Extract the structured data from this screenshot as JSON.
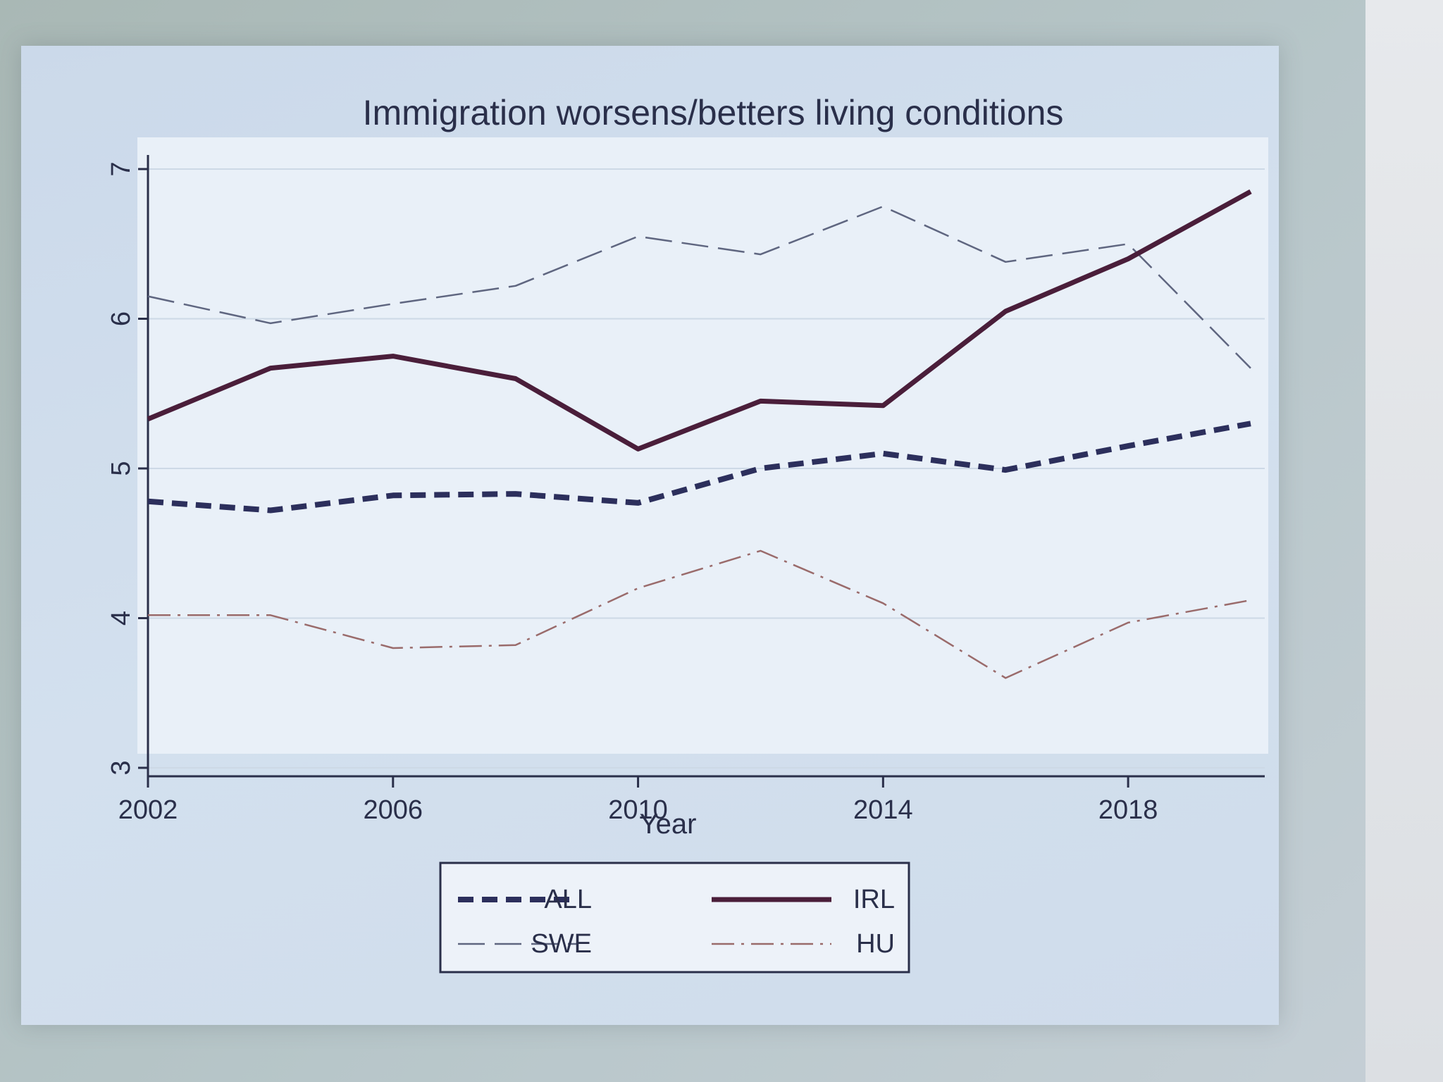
{
  "chart_data": {
    "type": "line",
    "title": "Immigration worsens/betters living conditions",
    "xlabel": "Year",
    "ylabel": "",
    "xlim": [
      2002,
      2020
    ],
    "ylim": [
      3,
      7
    ],
    "xticks": [
      2002,
      2006,
      2010,
      2014,
      2018
    ],
    "yticks": [
      3,
      4,
      5,
      6,
      7
    ],
    "grid": "horizontal",
    "legend_position": "bottom",
    "x": [
      2002,
      2004,
      2006,
      2008,
      2010,
      2012,
      2014,
      2016,
      2018,
      2020
    ],
    "series": [
      {
        "name": "ALL",
        "style": "dashed-bold",
        "color": "#2c2f5c",
        "values": [
          4.78,
          4.72,
          4.82,
          4.83,
          4.77,
          5.0,
          5.1,
          4.99,
          5.15,
          5.3
        ]
      },
      {
        "name": "IRL",
        "style": "solid-bold",
        "color": "#4a1e3a",
        "values": [
          5.33,
          5.67,
          5.75,
          5.6,
          5.13,
          5.45,
          5.42,
          6.05,
          6.4,
          6.85
        ]
      },
      {
        "name": "SWE",
        "style": "long-dash",
        "color": "#5f6680",
        "values": [
          6.15,
          5.97,
          6.1,
          6.22,
          6.55,
          6.43,
          6.75,
          6.38,
          6.5,
          5.67
        ]
      },
      {
        "name": "HU",
        "style": "dash-dot",
        "color": "#9a6b6b",
        "values": [
          4.02,
          4.02,
          3.8,
          3.82,
          4.2,
          4.45,
          4.1,
          3.6,
          3.97,
          4.12
        ]
      }
    ]
  }
}
